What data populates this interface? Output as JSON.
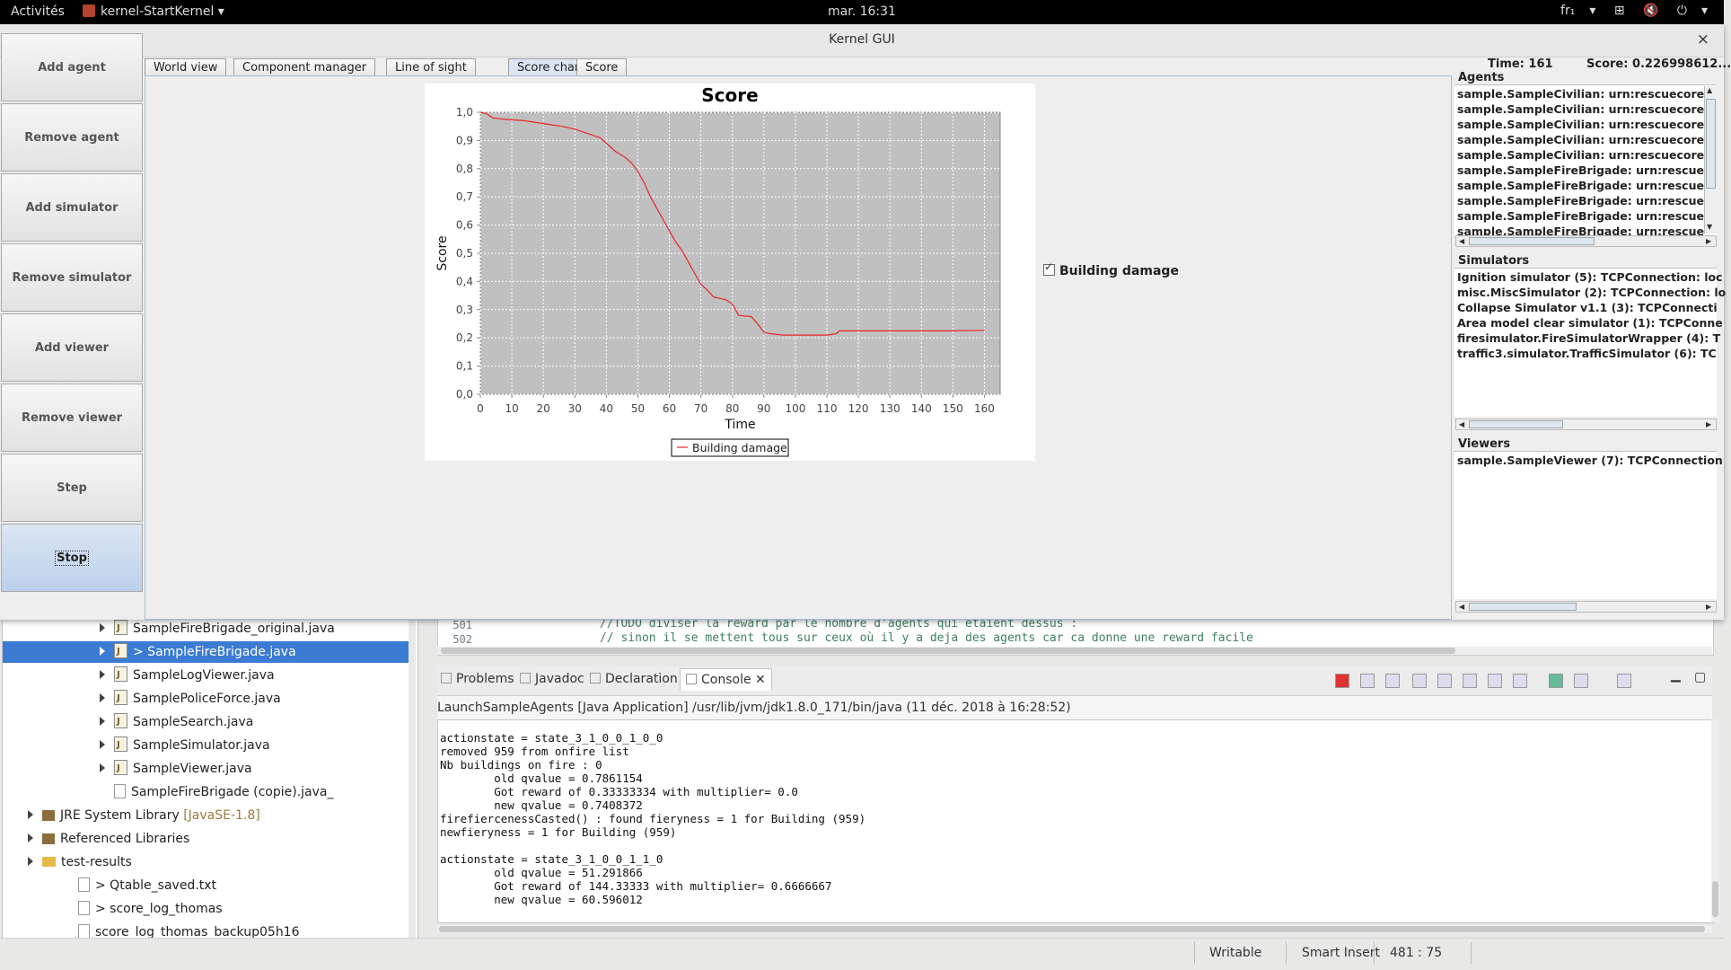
{
  "topbar": {
    "activities": "Activités",
    "app_name": "kernel-StartKernel",
    "clock": "mar. 16:31",
    "lang": "fr₁"
  },
  "window": {
    "title": "Kernel GUI",
    "close": "×"
  },
  "left_buttons": [
    "Add agent",
    "Remove agent",
    "Add simulator",
    "Remove simulator",
    "Add viewer",
    "Remove viewer",
    "Step",
    "Stop"
  ],
  "tabs": [
    "World view",
    "Component manager",
    "Line of sight",
    "Score chart",
    "Score"
  ],
  "active_tab": "Score chart",
  "status": {
    "time": "Time: 161",
    "score": "Score: 0.226998612..."
  },
  "legend_checkbox": "Building damage",
  "agents": {
    "title": "Agents",
    "items": [
      "sample.SampleCivilian: urn:rescuecore",
      "sample.SampleCivilian: urn:rescuecore",
      "sample.SampleCivilian: urn:rescuecore",
      "sample.SampleCivilian: urn:rescuecore",
      "sample.SampleCivilian: urn:rescuecore",
      "sample.SampleFireBrigade: urn:rescue",
      "sample.SampleFireBrigade: urn:rescue",
      "sample.SampleFireBrigade: urn:rescue",
      "sample.SampleFireBrigade: urn:rescue",
      "sample.SampleFireBrigade: urn:rescue"
    ]
  },
  "simulators": {
    "title": "Simulators",
    "items": [
      "Ignition simulator (5): TCPConnection: loc",
      "misc.MiscSimulator (2): TCPConnection: lo",
      "Collapse Simulator v1.1 (3): TCPConnecti",
      "Area model clear simulator (1): TCPConne",
      "firesimulator.FireSimulatorWrapper (4): T",
      "traffic3.simulator.TrafficSimulator (6): TC"
    ]
  },
  "viewers": {
    "title": "Viewers",
    "items": [
      "sample.SampleViewer (7): TCPConnection"
    ]
  },
  "chart_data": {
    "type": "line",
    "title": "Score",
    "xlabel": "Time",
    "ylabel": "Score",
    "xlim": [
      0,
      165
    ],
    "ylim": [
      0.0,
      1.0
    ],
    "xticks": [
      "0",
      "10",
      "20",
      "30",
      "40",
      "50",
      "60",
      "70",
      "80",
      "90",
      "100",
      "110",
      "120",
      "130",
      "140",
      "150",
      "160"
    ],
    "yticks": [
      "0,0",
      "0,1",
      "0,2",
      "0,3",
      "0,4",
      "0,5",
      "0,6",
      "0,7",
      "0,8",
      "0,9",
      "1,0"
    ],
    "grid": true,
    "legend": "bottom",
    "series": [
      {
        "name": "Building damage",
        "color": "#e8262a",
        "x": [
          0,
          2,
          4,
          8,
          14,
          20,
          26,
          30,
          34,
          38,
          40,
          43,
          46,
          48,
          50,
          52,
          54,
          56,
          58,
          60,
          62,
          64,
          66,
          68,
          70,
          72,
          74,
          78,
          80,
          82,
          86,
          88,
          90,
          92,
          96,
          100,
          104,
          110,
          113,
          114,
          120,
          130,
          140,
          150,
          160
        ],
        "y": [
          1.0,
          0.995,
          0.98,
          0.975,
          0.97,
          0.96,
          0.95,
          0.94,
          0.925,
          0.91,
          0.89,
          0.86,
          0.84,
          0.82,
          0.79,
          0.75,
          0.7,
          0.66,
          0.62,
          0.58,
          0.54,
          0.51,
          0.47,
          0.43,
          0.39,
          0.37,
          0.345,
          0.335,
          0.32,
          0.28,
          0.275,
          0.25,
          0.22,
          0.215,
          0.21,
          0.21,
          0.21,
          0.21,
          0.215,
          0.225,
          0.225,
          0.225,
          0.225,
          0.225,
          0.227
        ]
      }
    ]
  },
  "eclipse": {
    "tree": [
      {
        "label": "SampleFireBrigade_original.java",
        "indent": 3,
        "kind": "java",
        "arrow": true
      },
      {
        "label": "> SampleFireBrigade.java",
        "indent": 3,
        "kind": "java",
        "arrow": true,
        "selected": true
      },
      {
        "label": "SampleLogViewer.java",
        "indent": 3,
        "kind": "java",
        "arrow": true
      },
      {
        "label": "SamplePoliceForce.java",
        "indent": 3,
        "kind": "java",
        "arrow": true
      },
      {
        "label": "SampleSearch.java",
        "indent": 3,
        "kind": "java",
        "arrow": true
      },
      {
        "label": "SampleSimulator.java",
        "indent": 3,
        "kind": "java",
        "arrow": true
      },
      {
        "label": "SampleViewer.java",
        "indent": 3,
        "kind": "java",
        "arrow": true
      },
      {
        "label": "SampleFireBrigade (copie).java_",
        "indent": 3,
        "kind": "txt",
        "arrow": false
      },
      {
        "label": "JRE System Library",
        "tag": " [JavaSE-1.8]",
        "indent": 1,
        "kind": "lib",
        "arrow": true
      },
      {
        "label": "Referenced Libraries",
        "indent": 1,
        "kind": "lib",
        "arrow": true
      },
      {
        "label": "test-results",
        "indent": 1,
        "kind": "folder",
        "arrow": true
      },
      {
        "label": "> Qtable_saved.txt",
        "indent": 2,
        "kind": "txt",
        "arrow": false
      },
      {
        "label": "> score_log_thomas",
        "indent": 2,
        "kind": "txt",
        "arrow": false
      },
      {
        "label": "score_log_thomas_backup05h16",
        "indent": 2,
        "kind": "txt",
        "arrow": false
      }
    ],
    "editor": {
      "line_numbers": [
        "501",
        "502"
      ],
      "lines": [
        "//TODO diviser la reward par le nombre d'agents qui étaient dessus :",
        "// sinon il se mettent tous sur ceux où il y a deja des agents car ca donne une reward facile"
      ]
    },
    "console_tabs": [
      "Problems",
      "Javadoc",
      "Declaration",
      "Console"
    ],
    "active_console_tab": "Console",
    "console_header": "LaunchSampleAgents [Java Application] /usr/lib/jvm/jdk1.8.0_171/bin/java (11 déc. 2018 à 16:28:52)",
    "console_lines": [
      "actionstate = state_3_1_0_0_1_0_0",
      "removed 959 from onfire list",
      "Nb buildings on fire : 0",
      "        old qvalue = 0.7861154",
      "        Got reward of 0.33333334 with multiplier= 0.0",
      "        new qvalue = 0.7408372",
      "firefiercenessCasted() : found fieryness = 1 for Building (959)",
      "newfieryness = 1 for Building (959)",
      "",
      "actionstate = state_3_1_0_0_1_1_0",
      "        old qvalue = 51.291866",
      "        Got reward of 144.33333 with multiplier= 0.6666667",
      "        new qvalue = 60.596012"
    ],
    "statusbar": {
      "writable": "Writable",
      "insert": "Smart Insert",
      "position": "481 : 75"
    }
  }
}
